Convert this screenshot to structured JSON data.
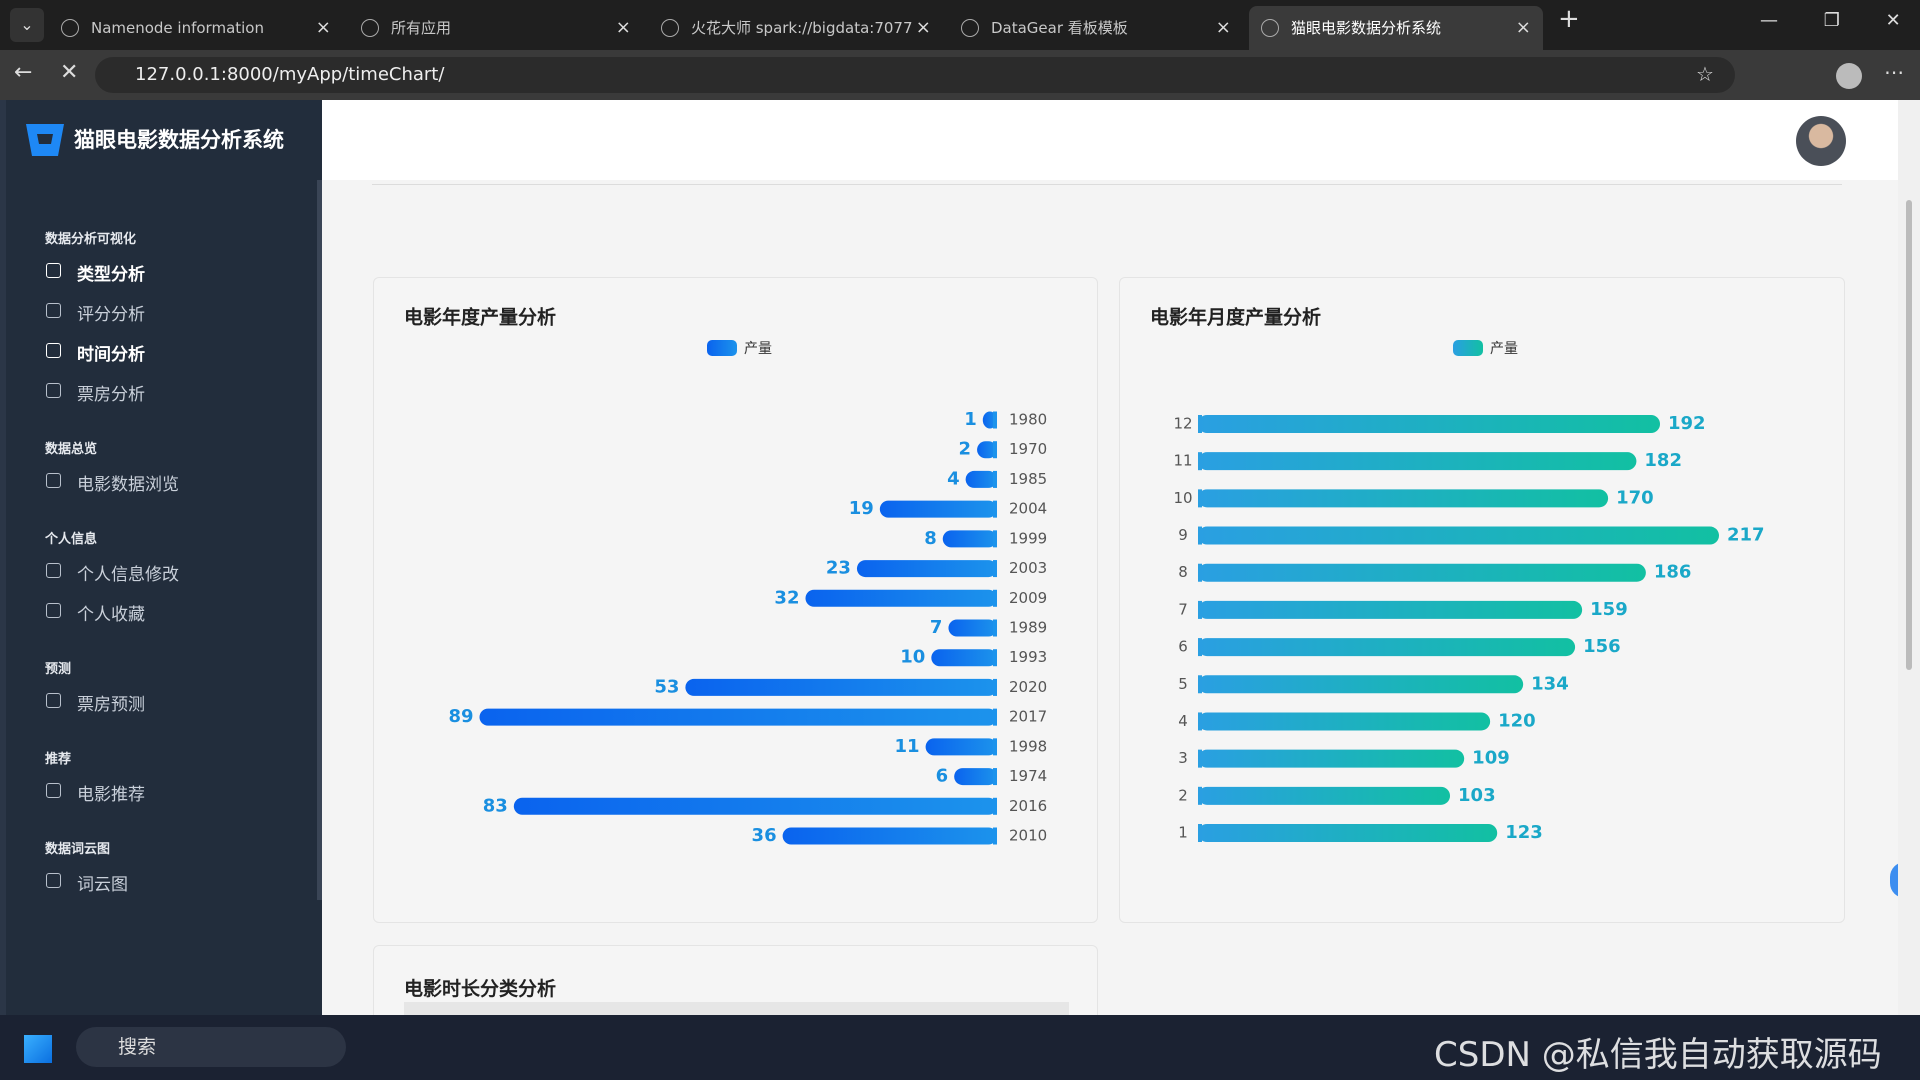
{
  "browser": {
    "tabs": [
      "Namenode information",
      "所有应用",
      "火花大师 spark://bigdata:7077",
      "DataGear 看板模板",
      "猫眼电影数据分析系统"
    ],
    "active_tab": 4,
    "url": "127.0.0.1:8000/myApp/timeChart/"
  },
  "sidebar": {
    "title": "猫眼电影数据分析系统",
    "sections": [
      {
        "heading": "数据分析可视化",
        "items": [
          "类型分析",
          "评分分析",
          "时间分析",
          "票房分析"
        ]
      },
      {
        "heading": "数据总览",
        "items": [
          "电影数据浏览"
        ]
      },
      {
        "heading": "个人信息",
        "items": [
          "个人信息修改",
          "个人收藏"
        ]
      },
      {
        "heading": "预测",
        "items": [
          "票房预测"
        ]
      },
      {
        "heading": "推荐",
        "items": [
          "电影推荐"
        ]
      },
      {
        "heading": "数据词云图",
        "items": [
          "词云图"
        ]
      }
    ]
  },
  "chart_data": [
    {
      "type": "bar",
      "orientation": "horizontal",
      "title": "电影年度产量分析",
      "categories": [
        "1980",
        "1970",
        "1985",
        "2004",
        "1999",
        "2003",
        "2009",
        "1989",
        "1993",
        "2020",
        "2017",
        "1998",
        "1974",
        "2016",
        "2010"
      ],
      "series": [
        {
          "name": "产量",
          "gradient": [
            "#0a63ee",
            "#1c93ec"
          ],
          "label_color": "#1a8fe0",
          "values": [
            1,
            2,
            4,
            19,
            8,
            23,
            32,
            7,
            10,
            53,
            89,
            11,
            6,
            83,
            36
          ]
        }
      ]
    },
    {
      "type": "bar",
      "orientation": "horizontal",
      "title": "电影年月度产量分析",
      "categories": [
        "12",
        "11",
        "10",
        "9",
        "8",
        "7",
        "6",
        "5",
        "4",
        "3",
        "2",
        "1"
      ],
      "series": [
        {
          "name": "产量",
          "gradient": [
            "#2a9fe2",
            "#12c0a2"
          ],
          "label_color": "#1aa8c8",
          "values": [
            192,
            182,
            170,
            217,
            186,
            159,
            156,
            134,
            120,
            109,
            103,
            123
          ]
        }
      ]
    }
  ],
  "lower_panel_title": "电影时长分类分析",
  "taskbar": {
    "search": "搜索"
  },
  "watermark": "CSDN @私信我自动获取源码"
}
